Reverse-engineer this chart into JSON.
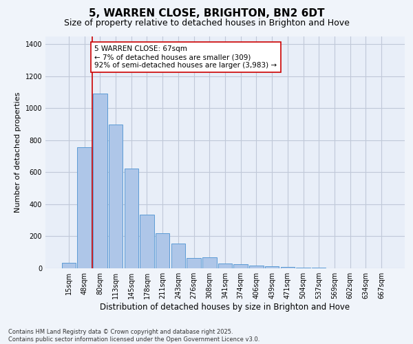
{
  "title": "5, WARREN CLOSE, BRIGHTON, BN2 6DT",
  "subtitle": "Size of property relative to detached houses in Brighton and Hove",
  "xlabel": "Distribution of detached houses by size in Brighton and Hove",
  "ylabel": "Number of detached properties",
  "categories": [
    "15sqm",
    "48sqm",
    "80sqm",
    "113sqm",
    "145sqm",
    "178sqm",
    "211sqm",
    "243sqm",
    "276sqm",
    "308sqm",
    "341sqm",
    "374sqm",
    "406sqm",
    "439sqm",
    "471sqm",
    "504sqm",
    "537sqm",
    "569sqm",
    "602sqm",
    "634sqm",
    "667sqm"
  ],
  "values": [
    35,
    755,
    1090,
    900,
    625,
    335,
    220,
    155,
    65,
    70,
    30,
    25,
    18,
    12,
    8,
    5,
    3,
    2,
    1,
    1,
    2
  ],
  "bar_color": "#aec6e8",
  "bar_edge_color": "#5b9bd5",
  "vline_color": "#cc0000",
  "annotation_text": "5 WARREN CLOSE: 67sqm\n← 7% of detached houses are smaller (309)\n92% of semi-detached houses are larger (3,983) →",
  "annotation_box_color": "#ffffff",
  "annotation_box_edge_color": "#cc0000",
  "ylim": [
    0,
    1450
  ],
  "yticks": [
    0,
    200,
    400,
    600,
    800,
    1000,
    1200,
    1400
  ],
  "bg_color": "#f0f4fa",
  "plot_bg_color": "#e8eef8",
  "grid_color": "#c0c8d8",
  "footer_text": "Contains HM Land Registry data © Crown copyright and database right 2025.\nContains public sector information licensed under the Open Government Licence v3.0.",
  "title_fontsize": 11,
  "subtitle_fontsize": 9,
  "xlabel_fontsize": 8.5,
  "ylabel_fontsize": 8,
  "tick_fontsize": 7,
  "annotation_fontsize": 7.5,
  "footer_fontsize": 6
}
